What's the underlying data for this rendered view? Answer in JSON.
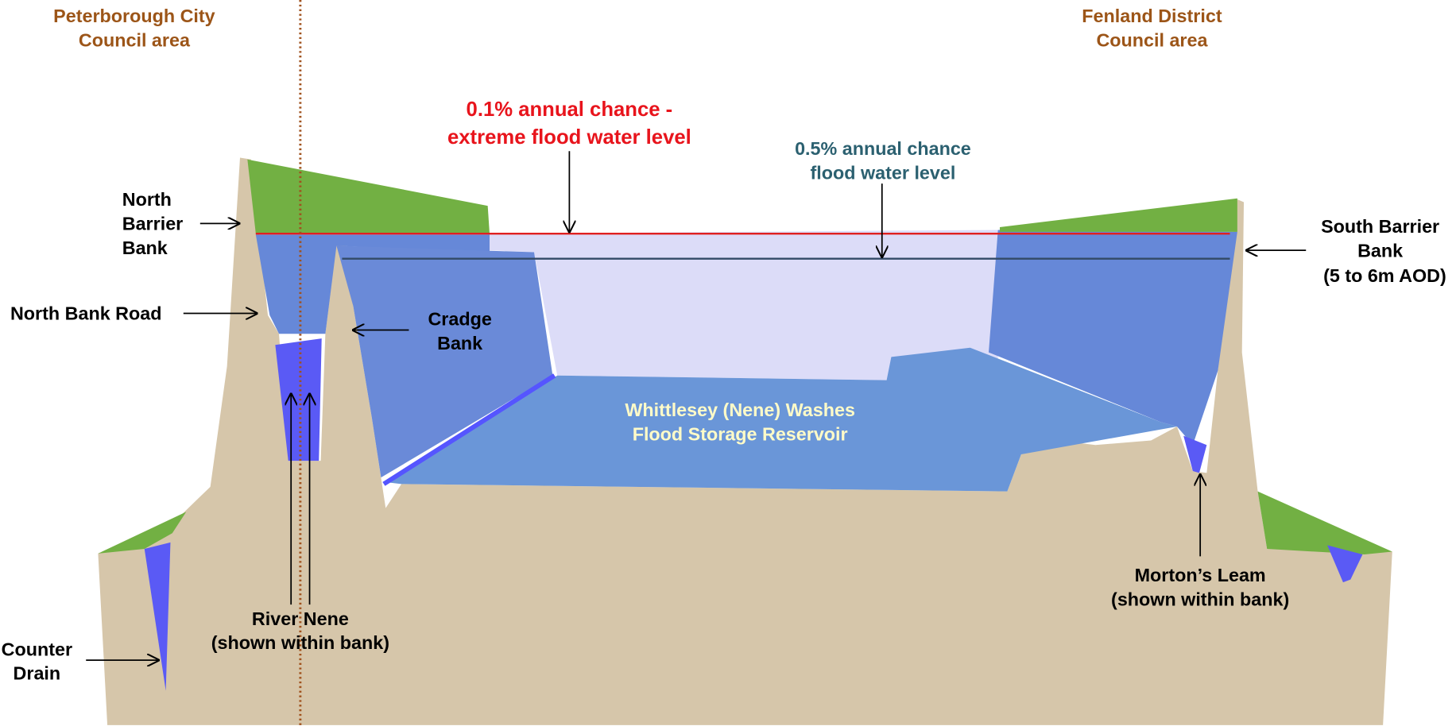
{
  "regions": {
    "left": [
      "Peterborough City",
      "Council area"
    ],
    "right": [
      "Fenland District",
      "Council area"
    ]
  },
  "water_levels": {
    "extreme": [
      "0.1% annual chance -",
      "extreme flood water level"
    ],
    "half_percent": [
      "0.5% annual chance",
      "flood water level"
    ]
  },
  "labels": {
    "north_barrier_bank": [
      "North",
      "Barrier",
      "Bank"
    ],
    "north_bank_road": [
      "North Bank Road"
    ],
    "cradge_bank": [
      "Cradge",
      "Bank"
    ],
    "reservoir": [
      "Whittlesey (Nene) Washes",
      "Flood Storage Reservoir"
    ],
    "south_barrier_bank": [
      "South Barrier",
      "Bank",
      "(5 to 6m AOD)"
    ],
    "river_nene": [
      "River Nene",
      "(shown within bank)"
    ],
    "counter_drain": [
      "Counter",
      "Drain"
    ],
    "mortons_leam": [
      "Morton’s Leam",
      "(shown within bank)"
    ]
  }
}
